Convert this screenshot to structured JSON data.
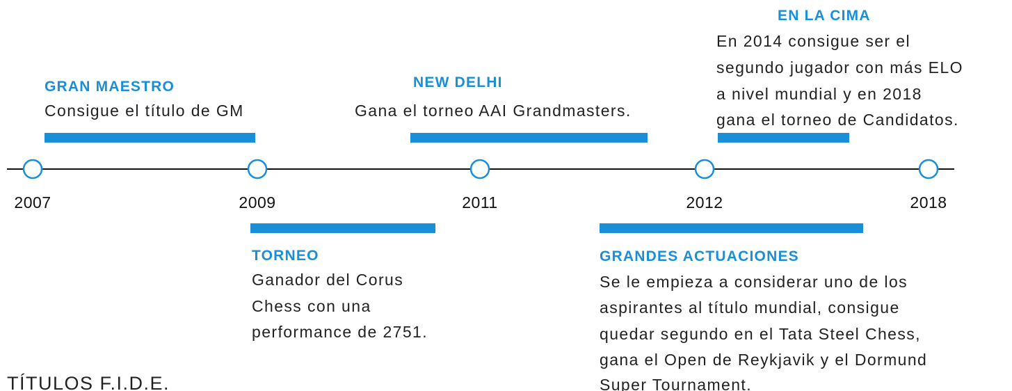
{
  "years": [
    "2007",
    "2009",
    "2011",
    "2012",
    "2018"
  ],
  "events": [
    {
      "title": "GRAN MAESTRO",
      "lines": [
        "Consigue el título de GM"
      ]
    },
    {
      "title": "NEW DELHI",
      "lines": [
        "Gana el torneo AAI Grandmasters."
      ]
    },
    {
      "title": "EN LA CIMA",
      "lines": [
        "En 2014 consigue ser el",
        "segundo jugador con más ELO",
        "a nivel mundial y en 2018",
        "gana el torneo de Candidatos."
      ]
    },
    {
      "title": "TORNEO",
      "lines": [
        "Ganador del Corus",
        "Chess con una",
        "performance de 2751."
      ]
    },
    {
      "title": "GRANDES  ACTUACIONES",
      "lines": [
        "Se le empieza a considerar uno de los",
        "aspirantes al título mundial, consigue",
        "quedar segundo en el Tata Steel Chess,",
        "gana el Open de Reykjavik y el Dormund",
        "Super Tournament."
      ]
    }
  ],
  "footer": "TÍTULOS F.I.D.E."
}
